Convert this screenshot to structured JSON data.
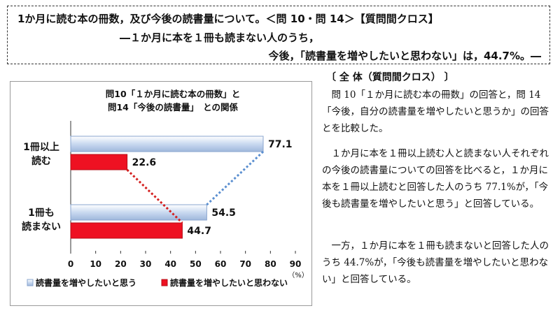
{
  "header": {
    "line1": "1か月に読む本の冊数，及び今後の読書量について。＜問 10・問 14＞【質問間クロス】",
    "line2": "―１か月に本を１冊も読まない人のうち，",
    "line3": "今後，「読書量を増やしたいと思わない」は，44.7%。―"
  },
  "chart_data": {
    "type": "bar",
    "orientation": "horizontal",
    "title_line1": "問10「１か月に読む本の冊数」と",
    "title_line2": "問14「今後の読書量」　との関係",
    "category_lines": [
      [
        "1冊以上",
        "読む"
      ],
      [
        "1冊も",
        "読まない"
      ]
    ],
    "series": [
      {
        "name": "読書量を増やしたいと思う",
        "values": [
          77.1,
          54.5
        ],
        "color": "#c9d9f0",
        "line_color": "#5b8fd0"
      },
      {
        "name": "読書量を増やしたいと思わない",
        "values": [
          22.6,
          44.7
        ],
        "color": "#ee1122",
        "line_color": "#d42020"
      }
    ],
    "value_labels": [
      [
        "77.1",
        "54.5"
      ],
      [
        "22.6",
        "44.7"
      ]
    ],
    "xlim": [
      0,
      90
    ],
    "xticks": [
      "0",
      "10",
      "20",
      "30",
      "40",
      "50",
      "60",
      "70",
      "80",
      "90"
    ],
    "unit": "（%）",
    "grid": false,
    "legend_position": "bottom"
  },
  "right": {
    "heading": "〔 全 体（質問間クロス） 〕",
    "para1": "問 10「１か月に読む本の冊数」の回答と，問 14「今後，自分の読書量を増やしたいと思うか」の回答とを比較した。",
    "para2": "１か月に本を１冊以上読む人と読まない人それぞれの今後の読書量についての回答を比べると，１か月に本を１冊以上読むと回答した人のうち 77.1%が，「今後も読書量を増やしたいと思う」と回答している。",
    "para3": "一方，１か月に本を１冊も読まないと回答した人のうち 44.7%が，「今後も読書量を増やしたいと思わない」と回答している。"
  }
}
